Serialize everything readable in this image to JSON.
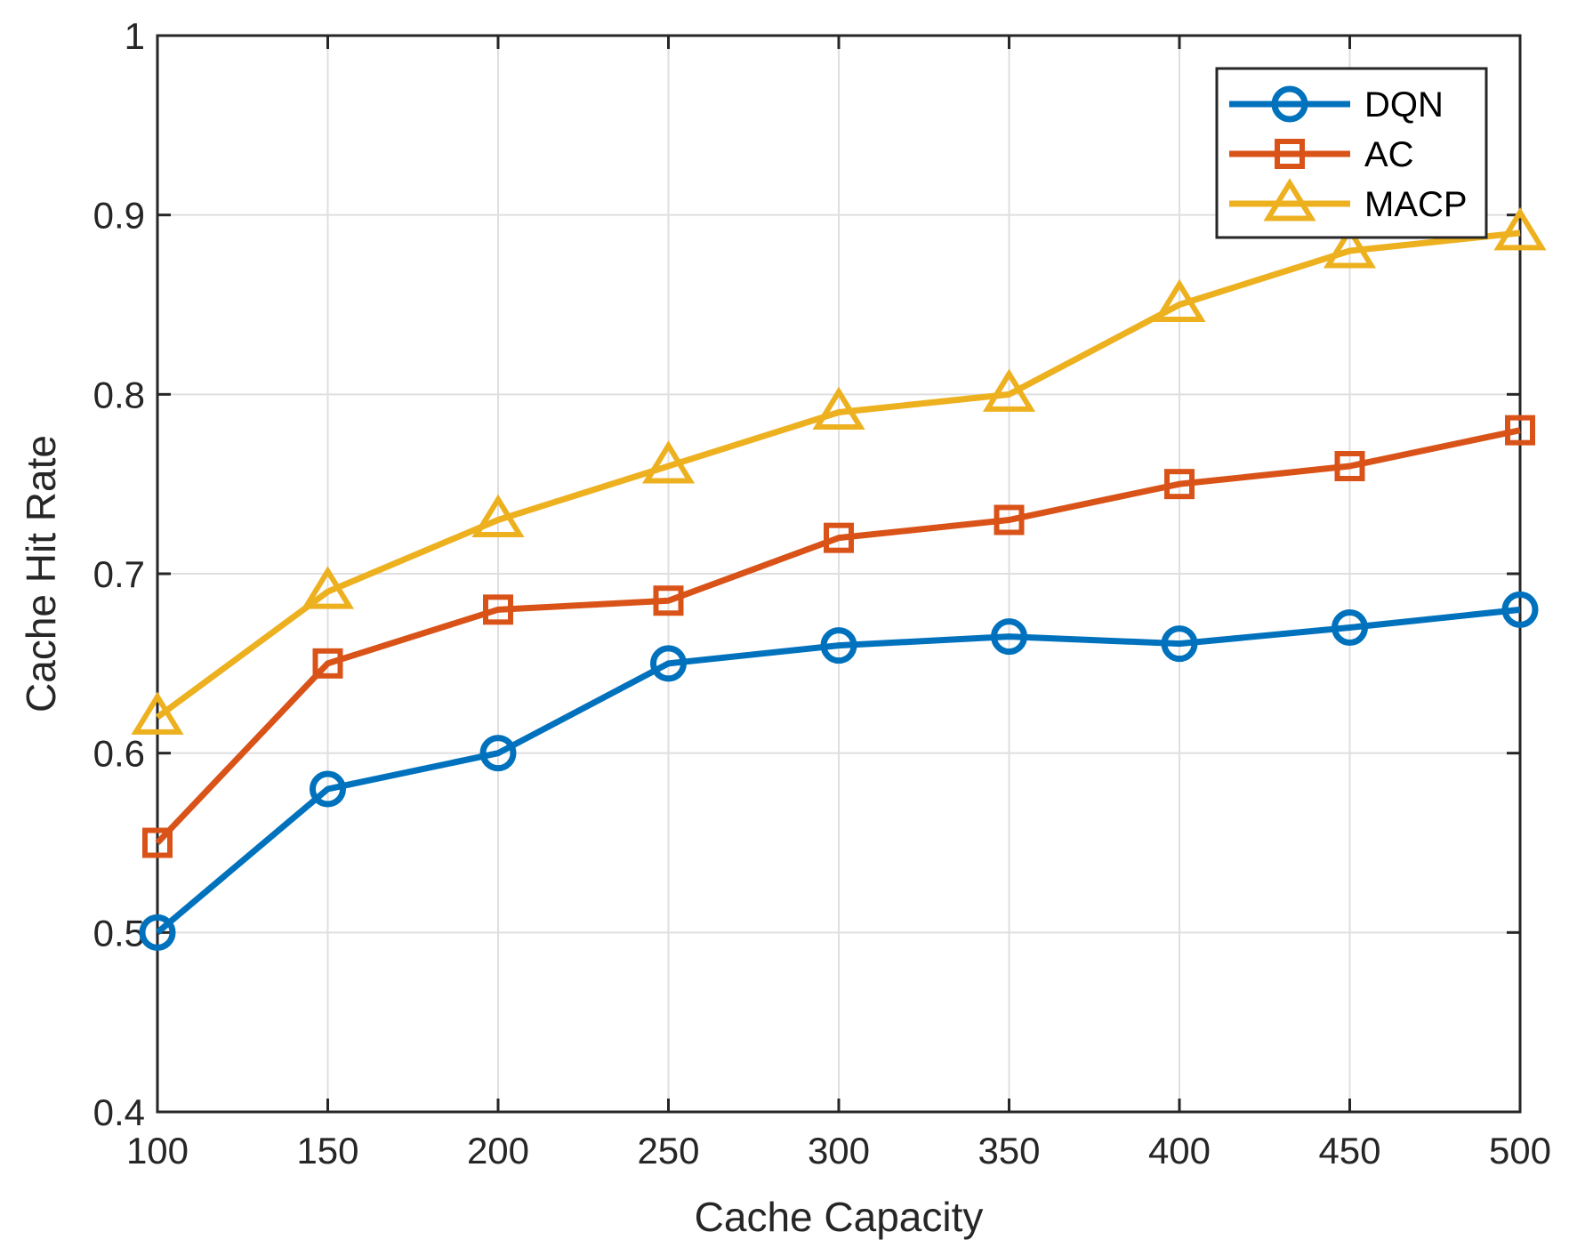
{
  "chart_data": {
    "type": "line",
    "title": "",
    "xlabel": "Cache Capacity",
    "ylabel": "Cache Hit Rate",
    "x": [
      100,
      150,
      200,
      250,
      300,
      350,
      400,
      450,
      500
    ],
    "xlim": [
      100,
      500
    ],
    "ylim": [
      0.4,
      1
    ],
    "xticks": [
      100,
      150,
      200,
      250,
      300,
      350,
      400,
      450,
      500
    ],
    "xtick_labels": [
      "100",
      "150",
      "200",
      "250",
      "300",
      "350",
      "400",
      "450",
      "500"
    ],
    "yticks": [
      0.4,
      0.5,
      0.6,
      0.7,
      0.8,
      0.9,
      1
    ],
    "ytick_labels": [
      "0.4",
      "0.5",
      "0.6",
      "0.7",
      "0.8",
      "0.9",
      "1"
    ],
    "grid": true,
    "legend_position": "top-right",
    "series": [
      {
        "name": "DQN",
        "color": "#0072BD",
        "marker": "circle",
        "values": [
          0.5,
          0.58,
          0.6,
          0.65,
          0.66,
          0.665,
          0.661,
          0.67,
          0.68
        ]
      },
      {
        "name": "AC",
        "color": "#D95319",
        "marker": "square",
        "values": [
          0.55,
          0.65,
          0.68,
          0.685,
          0.72,
          0.73,
          0.75,
          0.76,
          0.78
        ]
      },
      {
        "name": "MACP",
        "color": "#EDB120",
        "marker": "triangle",
        "values": [
          0.62,
          0.69,
          0.73,
          0.76,
          0.79,
          0.8,
          0.85,
          0.88,
          0.89
        ]
      }
    ]
  }
}
